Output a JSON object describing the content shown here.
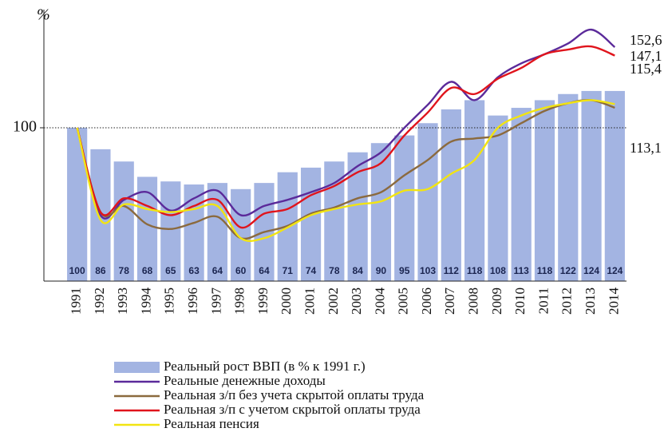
{
  "chart_data": {
    "type": "combo",
    "y_label": "%",
    "categories": [
      "1991",
      "1992",
      "1993",
      "1994",
      "1995",
      "1996",
      "1997",
      "1998",
      "1999",
      "2000",
      "2001",
      "2002",
      "2003",
      "2004",
      "2005",
      "2006",
      "2007",
      "2008",
      "2009",
      "2010",
      "2011",
      "2012",
      "2013",
      "2014"
    ],
    "ylim": [
      0,
      180
    ],
    "yticks": [
      100
    ],
    "series": [
      {
        "name": "Реальный рост ВВП (в % к 1991 г.)",
        "type": "bar",
        "color": "#a3b4e2",
        "values": [
          100,
          86,
          78,
          68,
          65,
          63,
          64,
          60,
          64,
          71,
          74,
          78,
          84,
          90,
          95,
          103,
          112,
          118,
          108,
          113,
          118,
          122,
          124,
          124
        ]
      },
      {
        "name": "Реальные денежные доходы",
        "type": "line",
        "color": "#5b2a9a",
        "values": [
          100,
          43,
          53,
          58,
          46,
          54,
          59,
          43,
          49,
          53,
          58,
          64,
          75,
          84,
          100,
          115,
          130,
          118,
          133,
          142,
          148,
          155,
          164,
          152.6
        ],
        "value_labels": [
          null,
          null,
          null,
          null,
          null,
          null,
          null,
          null,
          null,
          null,
          null,
          null,
          null,
          null,
          null,
          null,
          null,
          null,
          null,
          null,
          null,
          null,
          null,
          "152,6"
        ]
      },
      {
        "name": "Реальная з/п без учета скрытой оплаты труда",
        "type": "line",
        "color": "#8b6a3e",
        "values": [
          100,
          45,
          49,
          37,
          34,
          38,
          42,
          28,
          32,
          36,
          44,
          48,
          54,
          58,
          69,
          79,
          91,
          93,
          95,
          103,
          111,
          116,
          118,
          113.1
        ],
        "value_labels": [
          null,
          null,
          null,
          null,
          null,
          null,
          null,
          null,
          null,
          null,
          null,
          null,
          null,
          null,
          null,
          null,
          null,
          null,
          null,
          null,
          null,
          null,
          null,
          "113,1"
        ]
      },
      {
        "name": "Реальная з/п с учетом скрытой оплаты труда",
        "type": "line",
        "color": "#e0141c",
        "values": [
          100,
          45,
          54,
          49,
          43,
          49,
          53,
          35,
          44,
          47,
          56,
          62,
          71,
          77,
          95,
          110,
          126,
          122,
          132,
          139,
          148,
          151,
          153,
          147.1
        ],
        "value_labels": [
          null,
          null,
          null,
          null,
          null,
          null,
          null,
          null,
          null,
          null,
          null,
          null,
          null,
          null,
          null,
          null,
          null,
          null,
          null,
          null,
          null,
          null,
          null,
          "147,1"
        ]
      },
      {
        "name": "Реальная пенсия",
        "type": "line",
        "color": "#f2e411",
        "values": [
          100,
          40,
          50,
          47,
          45,
          47,
          49,
          28,
          28,
          35,
          43,
          47,
          50,
          52,
          59,
          60,
          70,
          79,
          100,
          108,
          113,
          116,
          118,
          115.4
        ],
        "value_labels": [
          null,
          null,
          null,
          null,
          null,
          null,
          null,
          null,
          null,
          null,
          null,
          null,
          null,
          null,
          null,
          null,
          null,
          null,
          null,
          null,
          null,
          null,
          null,
          "115,4"
        ]
      }
    ]
  }
}
